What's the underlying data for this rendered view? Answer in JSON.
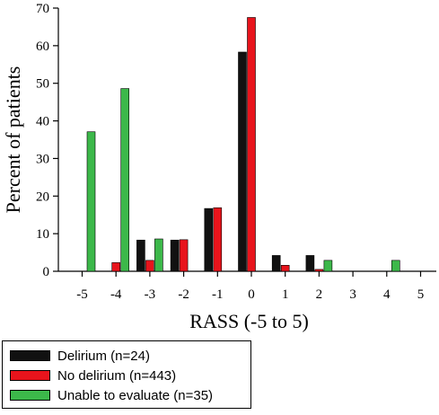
{
  "chart_data": {
    "type": "bar",
    "title": "",
    "xlabel": "RASS (-5 to 5)",
    "ylabel": "Percent of patients",
    "categories": [
      "-5",
      "-4",
      "-3",
      "-2",
      "-1",
      "0",
      "1",
      "2",
      "3",
      "4",
      "5"
    ],
    "yticks": [
      "0",
      "10",
      "20",
      "30",
      "40",
      "50",
      "60",
      "70"
    ],
    "ylim": [
      0,
      70
    ],
    "grid": false,
    "legend_position": "bottom-left, outside plot",
    "series": [
      {
        "name": "Delirium (n=24)",
        "color": "#111111",
        "values": [
          0,
          0,
          8.3,
          8.3,
          16.7,
          58.3,
          4.2,
          4.2,
          0,
          0,
          0
        ]
      },
      {
        "name": "No delirium (n=443)",
        "color": "#e8141c",
        "values": [
          0,
          2.3,
          2.9,
          8.4,
          16.9,
          67.5,
          1.6,
          0.5,
          0,
          0,
          0
        ]
      },
      {
        "name": "Unable to evaluate (n=35)",
        "color": "#3cb84a",
        "values": [
          37.1,
          48.6,
          8.6,
          0,
          0,
          0,
          0,
          2.9,
          0,
          2.9,
          0
        ]
      }
    ]
  }
}
